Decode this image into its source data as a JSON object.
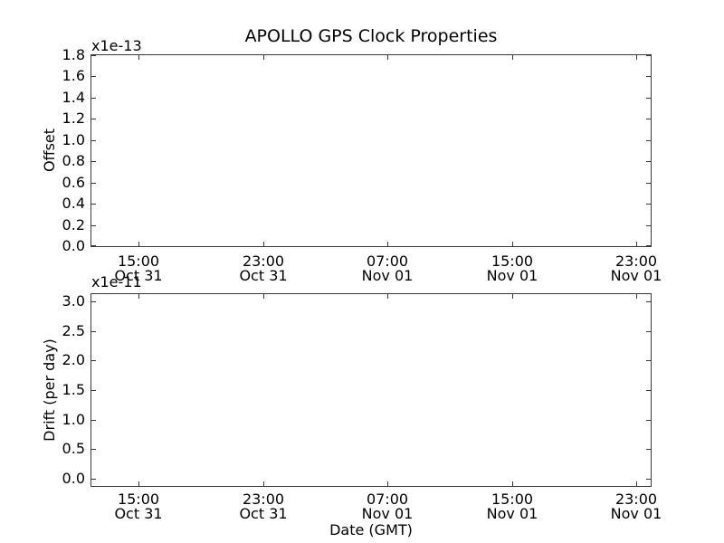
{
  "figure": {
    "background": "#ffffff",
    "spine_color": "#3a3a3a",
    "text_color": "#000000"
  },
  "chart_data": [
    {
      "type": "line",
      "title": "APOLLO GPS Clock Properties",
      "ylabel": "Offset",
      "xlabel": "",
      "y_offset_label": "x1e-13",
      "ytick_labels": [
        "1.8",
        "1.6",
        "1.4",
        "1.2",
        "1.0",
        "0.8",
        "0.6",
        "0.4",
        "0.2",
        "0.0"
      ],
      "ylim": [
        0.0,
        1.8
      ],
      "xticks": [
        {
          "time": "15:00",
          "date": "Oct 31"
        },
        {
          "time": "23:00",
          "date": "Oct 31"
        },
        {
          "time": "07:00",
          "date": "Nov 01"
        },
        {
          "time": "15:00",
          "date": "Nov 01"
        },
        {
          "time": "23:00",
          "date": "Nov 01"
        }
      ],
      "xlim": [
        "Oct 31 12:00",
        "Nov 02 00:00"
      ],
      "grid": false,
      "tick_direction": "in",
      "series": []
    },
    {
      "type": "line",
      "title": "",
      "ylabel": "Drift (per day)",
      "xlabel": "Date (GMT)",
      "y_offset_label": "x1e-11",
      "ytick_labels": [
        "3.0",
        "2.5",
        "2.0",
        "1.5",
        "1.0",
        "0.5",
        "0.0"
      ],
      "ylim": [
        -0.1,
        3.1
      ],
      "xticks": [
        {
          "time": "15:00",
          "date": "Oct 31"
        },
        {
          "time": "23:00",
          "date": "Oct 31"
        },
        {
          "time": "07:00",
          "date": "Nov 01"
        },
        {
          "time": "15:00",
          "date": "Nov 01"
        },
        {
          "time": "23:00",
          "date": "Nov 01"
        }
      ],
      "xlim": [
        "Oct 31 12:00",
        "Nov 02 00:00"
      ],
      "grid": false,
      "tick_direction": "in",
      "series": []
    }
  ]
}
